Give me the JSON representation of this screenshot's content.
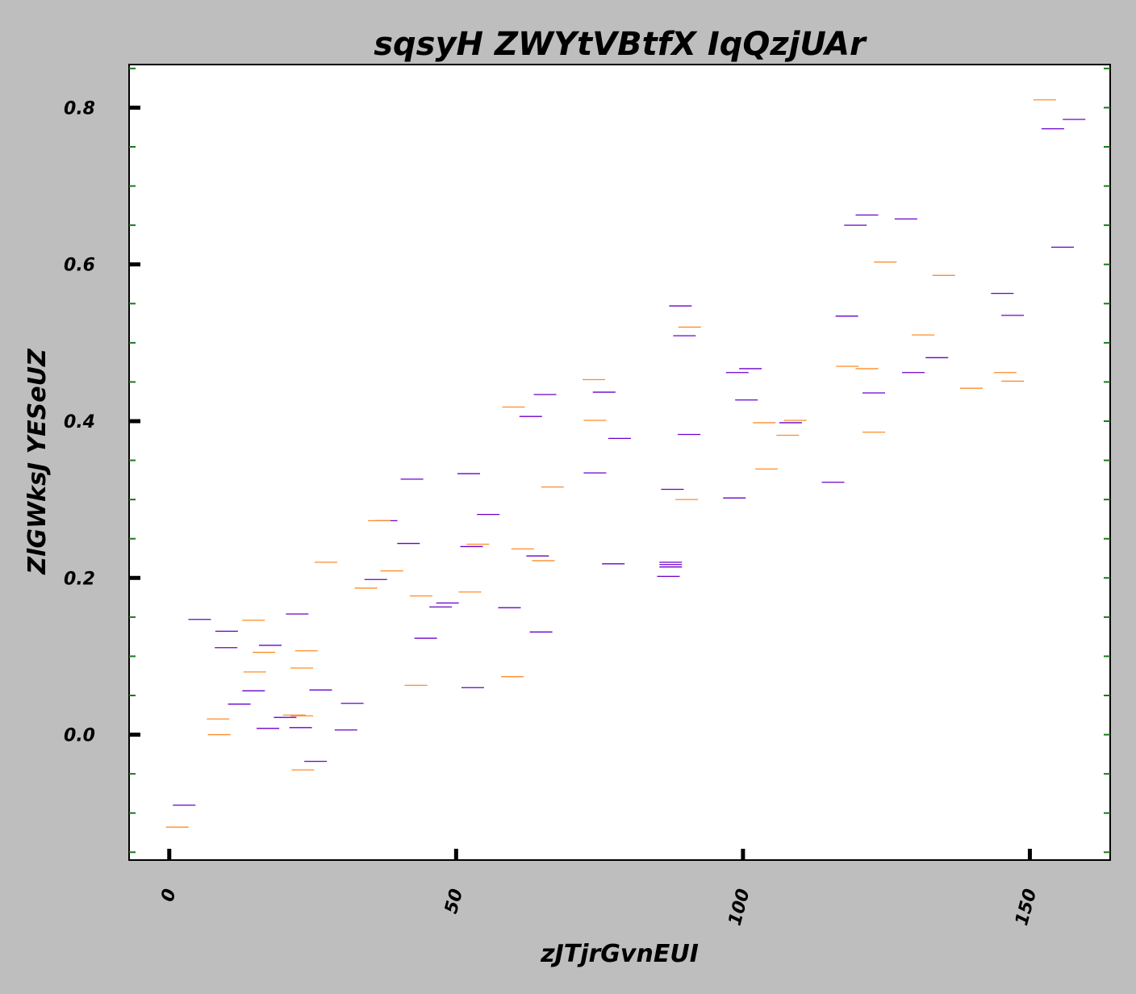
{
  "chart_data": {
    "type": "scatter",
    "title": "sqsyH ZWYtVBtfX IqQzjUAr",
    "xlabel": "zJTjrGvnEUI",
    "ylabel": "ZlGWksJ YESeUZ",
    "xlim": [
      -7,
      164
    ],
    "ylim": [
      -0.16,
      0.855
    ],
    "x_ticks": [
      0,
      50,
      100,
      150
    ],
    "x_tick_labels": [
      "0",
      "50",
      "100",
      "150"
    ],
    "y_ticks": [
      0.0,
      0.2,
      0.4,
      0.6,
      0.8
    ],
    "y_tick_labels": [
      "0.0",
      "0.2",
      "0.4",
      "0.6",
      "0.8"
    ],
    "y_minor_step": 0.05,
    "grid": false,
    "legend": "none",
    "marker": "horizontal-dash",
    "background": "#bebebe",
    "plot_background": "#ffffff",
    "series": [
      {
        "color": "#6a00cc",
        "points": [
          [
            2.6,
            -0.09
          ],
          [
            5.3,
            0.147
          ],
          [
            10.0,
            0.132
          ],
          [
            9.9,
            0.111
          ],
          [
            12.2,
            0.039
          ],
          [
            17.6,
            0.114
          ],
          [
            14.7,
            0.056
          ],
          [
            17.2,
            0.008
          ],
          [
            20.2,
            0.022
          ],
          [
            22.3,
            0.154
          ],
          [
            22.9,
            0.009
          ],
          [
            25.5,
            -0.034
          ],
          [
            26.4,
            0.057
          ],
          [
            30.8,
            0.006
          ],
          [
            31.9,
            0.04
          ],
          [
            36.0,
            0.198
          ],
          [
            37.8,
            0.273
          ],
          [
            41.7,
            0.244
          ],
          [
            42.3,
            0.326
          ],
          [
            44.7,
            0.123
          ],
          [
            47.3,
            0.163
          ],
          [
            48.5,
            0.168
          ],
          [
            52.9,
            0.06
          ],
          [
            52.7,
            0.24
          ],
          [
            52.2,
            0.333
          ],
          [
            55.6,
            0.281
          ],
          [
            59.3,
            0.162
          ],
          [
            63.0,
            0.406
          ],
          [
            64.2,
            0.228
          ],
          [
            64.8,
            0.131
          ],
          [
            65.5,
            0.434
          ],
          [
            74.2,
            0.334
          ],
          [
            75.8,
            0.437
          ],
          [
            77.4,
            0.218
          ],
          [
            78.5,
            0.378
          ],
          [
            87.0,
            0.202
          ],
          [
            87.4,
            0.22
          ],
          [
            87.4,
            0.217
          ],
          [
            87.4,
            0.214
          ],
          [
            87.7,
            0.313
          ],
          [
            89.1,
            0.547
          ],
          [
            89.8,
            0.509
          ],
          [
            90.6,
            0.383
          ],
          [
            98.5,
            0.302
          ],
          [
            99.0,
            0.462
          ],
          [
            100.6,
            0.427
          ],
          [
            101.3,
            0.467
          ],
          [
            108.3,
            0.398
          ],
          [
            115.7,
            0.322
          ],
          [
            118.1,
            0.534
          ],
          [
            119.6,
            0.65
          ],
          [
            121.6,
            0.663
          ],
          [
            122.8,
            0.436
          ],
          [
            128.4,
            0.658
          ],
          [
            129.7,
            0.462
          ],
          [
            133.8,
            0.481
          ],
          [
            145.2,
            0.563
          ],
          [
            147.0,
            0.535
          ],
          [
            154.0,
            0.773
          ],
          [
            155.7,
            0.622
          ],
          [
            157.7,
            0.785
          ]
        ]
      },
      {
        "color": "#ff8c28",
        "points": [
          [
            1.4,
            -0.118
          ],
          [
            8.5,
            0.02
          ],
          [
            8.7,
            0.0
          ],
          [
            14.9,
            0.08
          ],
          [
            16.5,
            0.105
          ],
          [
            14.7,
            0.146
          ],
          [
            21.8,
            0.025
          ],
          [
            23.1,
            0.024
          ],
          [
            23.1,
            0.085
          ],
          [
            23.9,
            0.107
          ],
          [
            23.3,
            -0.045
          ],
          [
            27.3,
            0.22
          ],
          [
            34.3,
            0.187
          ],
          [
            36.6,
            0.273
          ],
          [
            38.8,
            0.209
          ],
          [
            43.0,
            0.063
          ],
          [
            43.9,
            0.177
          ],
          [
            52.4,
            0.182
          ],
          [
            53.8,
            0.243
          ],
          [
            59.8,
            0.074
          ],
          [
            60.0,
            0.418
          ],
          [
            61.6,
            0.237
          ],
          [
            65.2,
            0.222
          ],
          [
            66.8,
            0.316
          ],
          [
            74.0,
            0.453
          ],
          [
            74.2,
            0.401
          ],
          [
            90.2,
            0.3
          ],
          [
            90.7,
            0.52
          ],
          [
            103.7,
            0.398
          ],
          [
            104.1,
            0.339
          ],
          [
            107.8,
            0.382
          ],
          [
            109.1,
            0.401
          ],
          [
            118.2,
            0.47
          ],
          [
            121.6,
            0.467
          ],
          [
            122.8,
            0.386
          ],
          [
            124.8,
            0.603
          ],
          [
            131.4,
            0.51
          ],
          [
            135.0,
            0.586
          ],
          [
            139.8,
            0.442
          ],
          [
            145.7,
            0.462
          ],
          [
            147.0,
            0.451
          ],
          [
            152.6,
            0.81
          ]
        ]
      }
    ]
  }
}
